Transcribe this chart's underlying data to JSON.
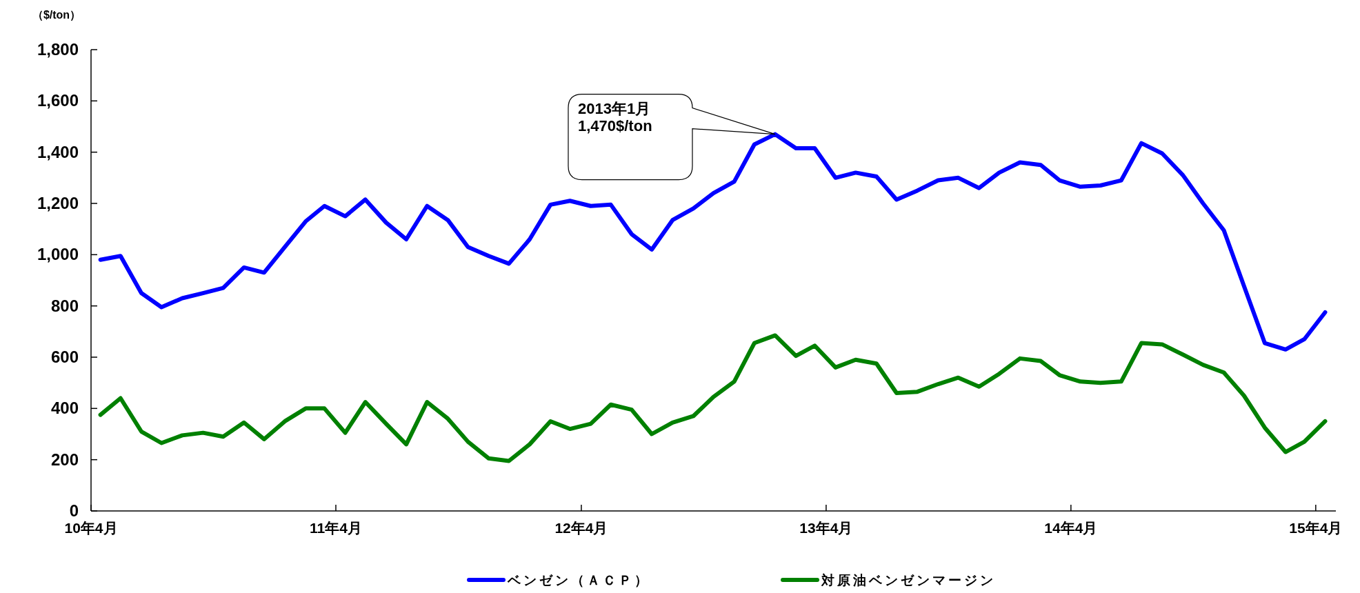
{
  "chart_data": {
    "type": "line",
    "ylabel": "（$/ton）",
    "x": [
      "2010-04-15",
      "2010-05-15",
      "2010-06-15",
      "2010-07-15",
      "2010-08-15",
      "2010-09-15",
      "2010-10-15",
      "2010-11-15",
      "2010-12-15",
      "2011-01-15",
      "2011-02-15",
      "2011-03-15",
      "2011-04-15",
      "2011-05-15",
      "2011-06-15",
      "2011-07-15",
      "2011-08-15",
      "2011-09-15",
      "2011-10-15",
      "2011-11-15",
      "2011-12-15",
      "2012-01-15",
      "2012-02-15",
      "2012-03-15",
      "2012-04-15",
      "2012-05-15",
      "2012-06-15",
      "2012-07-15",
      "2012-08-15",
      "2012-09-15",
      "2012-10-15",
      "2012-11-15",
      "2012-12-15",
      "2013-01-15",
      "2013-02-15",
      "2013-03-15",
      "2013-04-15",
      "2013-05-15",
      "2013-06-15",
      "2013-07-15",
      "2013-08-15",
      "2013-09-15",
      "2013-10-15",
      "2013-11-15",
      "2013-12-15",
      "2014-01-15",
      "2014-02-15",
      "2014-03-15",
      "2014-04-15",
      "2014-05-15",
      "2014-06-15",
      "2014-07-15",
      "2014-08-15",
      "2014-09-15",
      "2014-10-15",
      "2014-11-15",
      "2014-12-15",
      "2015-01-15",
      "2015-02-15",
      "2015-03-15",
      "2015-04-15"
    ],
    "series": [
      {
        "name": "ベンゼン（ＡＣＰ）",
        "color": "#0000ff",
        "values": [
          980,
          995,
          850,
          795,
          830,
          850,
          870,
          950,
          930,
          1030,
          1130,
          1190,
          1150,
          1215,
          1125,
          1060,
          1190,
          1135,
          1030,
          995,
          965,
          1060,
          1195,
          1210,
          1190,
          1195,
          1080,
          1020,
          1135,
          1180,
          1240,
          1285,
          1430,
          1470,
          1415,
          1415,
          1300,
          1320,
          1305,
          1215,
          1250,
          1290,
          1300,
          1260,
          1320,
          1360,
          1350,
          1290,
          1265,
          1270,
          1290,
          1435,
          1395,
          1310,
          1200,
          1095,
          878,
          655,
          630,
          670,
          775
        ]
      },
      {
        "name": "対原油ベンゼンマージン",
        "color": "#008000",
        "values": [
          375,
          440,
          310,
          265,
          295,
          305,
          290,
          345,
          280,
          350,
          400,
          400,
          305,
          425,
          340,
          260,
          425,
          360,
          270,
          205,
          195,
          260,
          350,
          320,
          340,
          415,
          395,
          300,
          345,
          370,
          445,
          505,
          655,
          685,
          605,
          645,
          560,
          590,
          575,
          460,
          465,
          495,
          520,
          485,
          535,
          595,
          585,
          530,
          505,
          500,
          505,
          655,
          650,
          610,
          570,
          540,
          450,
          325,
          230,
          270,
          350
        ]
      }
    ],
    "xlim": [
      "2010-04-01",
      "2015-05-01"
    ],
    "xticks": [
      {
        "value": "2010-04-01",
        "label": "10年4月"
      },
      {
        "value": "2011-04-01",
        "label": "11年4月"
      },
      {
        "value": "2012-04-01",
        "label": "12年4月"
      },
      {
        "value": "2013-04-01",
        "label": "13年4月"
      },
      {
        "value": "2014-04-01",
        "label": "14年4月"
      },
      {
        "value": "2015-04-01",
        "label": "15年4月"
      }
    ],
    "ylim": [
      0,
      1800
    ],
    "yticks": [
      0,
      200,
      400,
      600,
      800,
      {
        "value": 1000,
        "label": "1,000"
      },
      {
        "value": 1200,
        "label": "1,200"
      },
      {
        "value": 1400,
        "label": "1,400"
      },
      {
        "value": 1600,
        "label": "1,600"
      },
      {
        "value": 1800,
        "label": "1,800"
      }
    ],
    "annotations": [
      "2013年1月\n1,470$/ton"
    ],
    "legend": "bottom",
    "grid": false,
    "marker": "none",
    "line_style": "solid"
  }
}
